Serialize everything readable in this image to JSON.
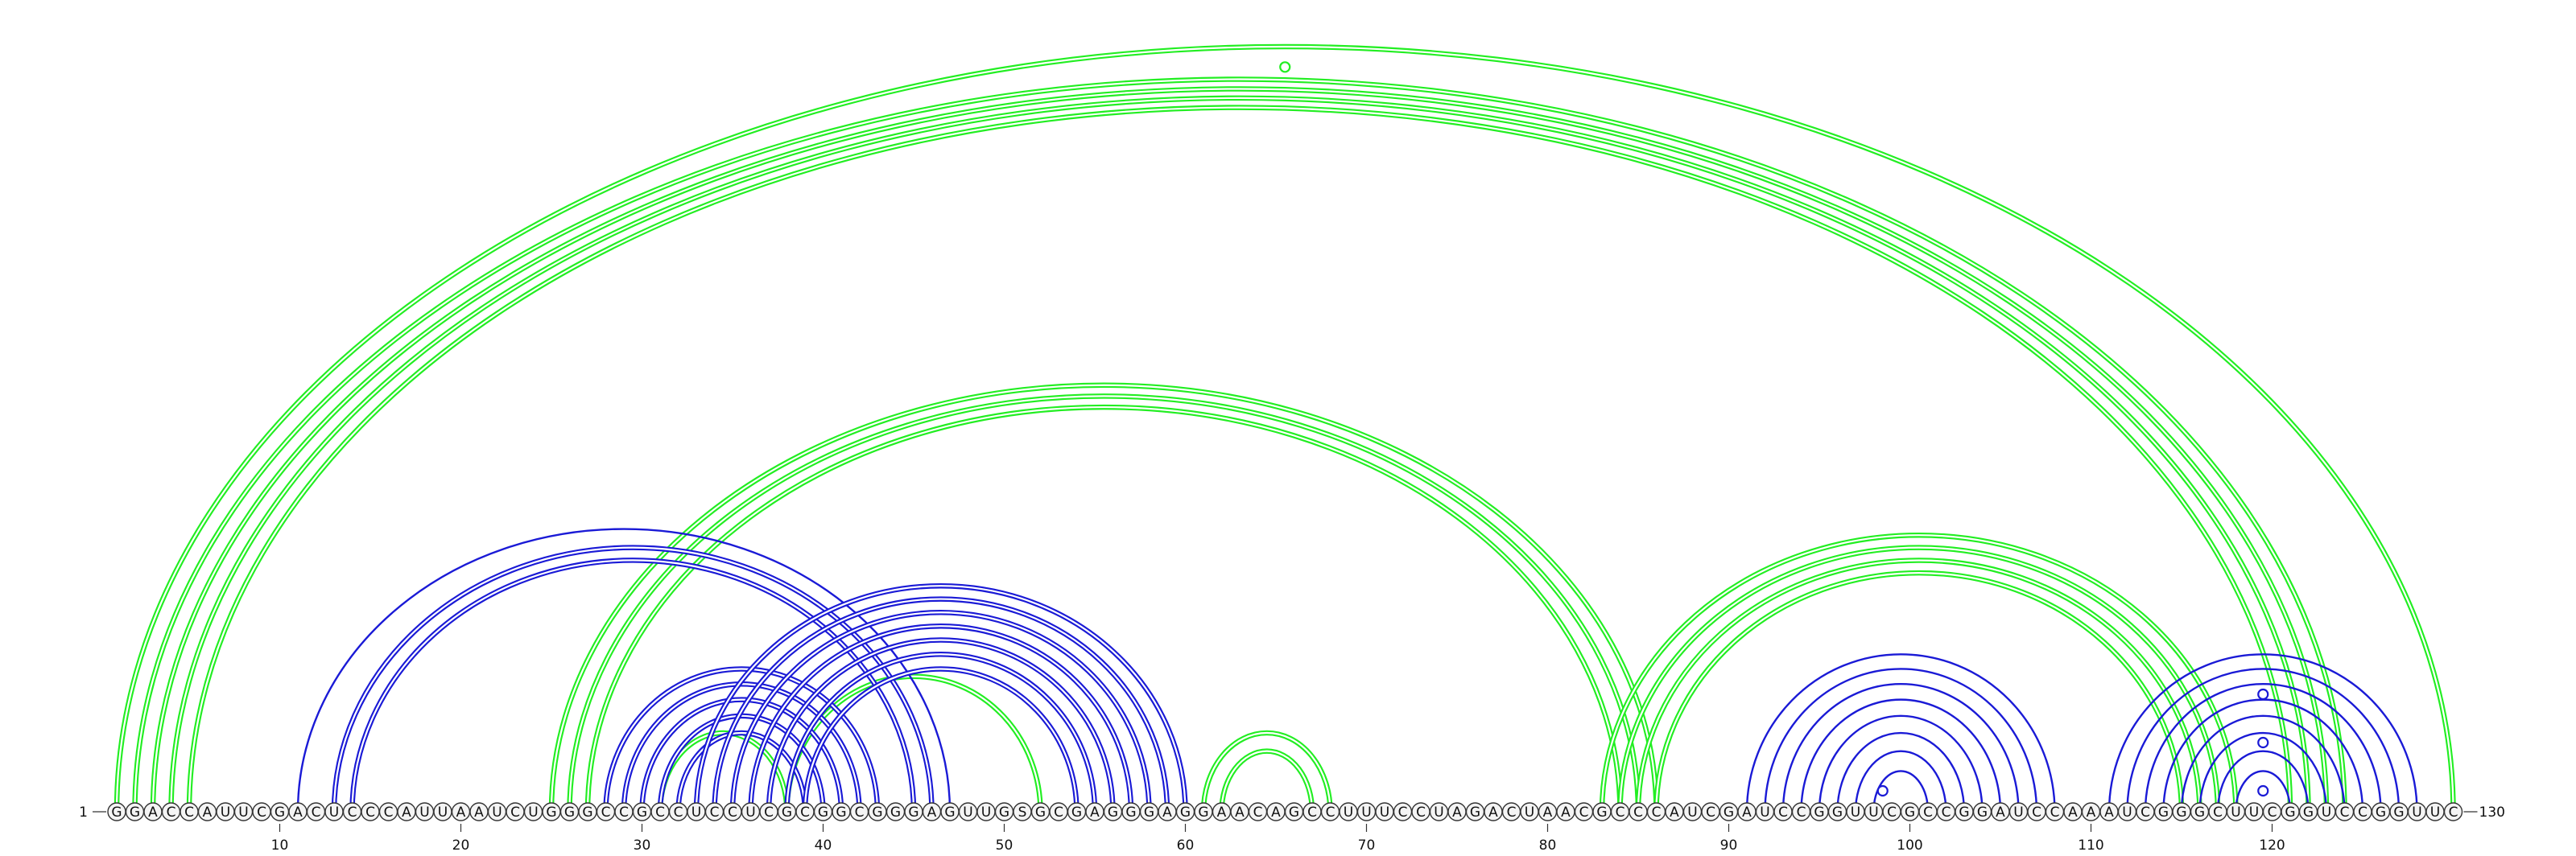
{
  "sequence": "GGACCAUUCGACUCCCAUUAAUCUGGGCCGCCUCCUCGCGGCGGGAGUUGSGCGAGGGAGGAACAGCCUUUCCUAGACUAACGCCCAUCGAUCCGGUUCGCCGGAUCCAAAUCGGGCUUCGGUCCGGUUC",
  "start_label": "1",
  "end_label": "130",
  "ticks": [
    {
      "pos": 10,
      "label": "10"
    },
    {
      "pos": 20,
      "label": "20"
    },
    {
      "pos": 30,
      "label": "30"
    },
    {
      "pos": 40,
      "label": "40"
    },
    {
      "pos": 50,
      "label": "50"
    },
    {
      "pos": 60,
      "label": "60"
    },
    {
      "pos": 70,
      "label": "70"
    },
    {
      "pos": 80,
      "label": "80"
    },
    {
      "pos": 90,
      "label": "90"
    },
    {
      "pos": 100,
      "label": "100"
    },
    {
      "pos": 110,
      "label": "110"
    },
    {
      "pos": 120,
      "label": "120"
    },
    {
      "pos": 130,
      "label": "130"
    }
  ],
  "colors": {
    "green": "#22ee22",
    "blue": "#1a1ad6"
  },
  "markers": [
    {
      "pos": 65.5,
      "level": "top",
      "color": "green"
    },
    {
      "pos": 119.5,
      "level": 1,
      "color": "blue"
    },
    {
      "pos": 119.5,
      "level": 3,
      "color": "blue"
    },
    {
      "pos": 119.5,
      "level": 5,
      "color": "blue"
    },
    {
      "pos": 98.5,
      "level": 1,
      "color": "blue"
    }
  ],
  "arcs": [
    {
      "i": 1,
      "j": 130,
      "color": "green",
      "double": true
    },
    {
      "i": 2,
      "j": 124,
      "color": "green",
      "double": true
    },
    {
      "i": 3,
      "j": 123,
      "color": "green",
      "double": true
    },
    {
      "i": 4,
      "j": 122,
      "color": "green",
      "double": true
    },
    {
      "i": 5,
      "j": 121,
      "color": "green",
      "double": true
    },
    {
      "i": 25,
      "j": 86,
      "color": "green",
      "double": true
    },
    {
      "i": 26,
      "j": 85,
      "color": "green",
      "double": true
    },
    {
      "i": 27,
      "j": 84,
      "color": "green",
      "double": true
    },
    {
      "i": 83,
      "j": 118,
      "color": "green",
      "double": true
    },
    {
      "i": 84,
      "j": 117,
      "color": "green",
      "double": true
    },
    {
      "i": 85,
      "j": 116,
      "color": "green",
      "double": true
    },
    {
      "i": 86,
      "j": 115,
      "color": "green",
      "double": true
    },
    {
      "i": 61,
      "j": 68,
      "color": "green",
      "double": true
    },
    {
      "i": 62,
      "j": 67,
      "color": "green",
      "double": true
    },
    {
      "i": 38,
      "j": 52,
      "color": "green",
      "double": true
    },
    {
      "i": 31,
      "j": 38,
      "color": "green",
      "double": true
    },
    {
      "i": 11,
      "j": 47,
      "color": "blue",
      "double": false
    },
    {
      "i": 13,
      "j": 46,
      "color": "blue",
      "double": true
    },
    {
      "i": 14,
      "j": 45,
      "color": "blue",
      "double": true
    },
    {
      "i": 28,
      "j": 43,
      "color": "blue",
      "double": true
    },
    {
      "i": 29,
      "j": 42,
      "color": "blue",
      "double": true
    },
    {
      "i": 30,
      "j": 41,
      "color": "blue",
      "double": true
    },
    {
      "i": 31,
      "j": 40,
      "color": "blue",
      "double": true
    },
    {
      "i": 32,
      "j": 39,
      "color": "blue",
      "double": true
    },
    {
      "i": 33,
      "j": 60,
      "color": "blue",
      "double": true
    },
    {
      "i": 34,
      "j": 59,
      "color": "blue",
      "double": true
    },
    {
      "i": 35,
      "j": 58,
      "color": "blue",
      "double": true
    },
    {
      "i": 36,
      "j": 57,
      "color": "blue",
      "double": true
    },
    {
      "i": 37,
      "j": 56,
      "color": "blue",
      "double": true
    },
    {
      "i": 38,
      "j": 55,
      "color": "blue",
      "double": true
    },
    {
      "i": 39,
      "j": 54,
      "color": "blue",
      "double": true
    },
    {
      "i": 91,
      "j": 108,
      "color": "blue",
      "double": false
    },
    {
      "i": 92,
      "j": 107,
      "color": "blue",
      "double": false
    },
    {
      "i": 93,
      "j": 106,
      "color": "blue",
      "double": false
    },
    {
      "i": 94,
      "j": 105,
      "color": "blue",
      "double": false
    },
    {
      "i": 95,
      "j": 104,
      "color": "blue",
      "double": false
    },
    {
      "i": 96,
      "j": 103,
      "color": "blue",
      "double": false
    },
    {
      "i": 97,
      "j": 102,
      "color": "blue",
      "double": false
    },
    {
      "i": 98,
      "j": 101,
      "color": "blue",
      "double": false
    },
    {
      "i": 111,
      "j": 128,
      "color": "blue",
      "double": false
    },
    {
      "i": 112,
      "j": 127,
      "color": "blue",
      "double": false
    },
    {
      "i": 113,
      "j": 126,
      "color": "blue",
      "double": false
    },
    {
      "i": 114,
      "j": 125,
      "color": "blue",
      "double": false
    },
    {
      "i": 115,
      "j": 124,
      "color": "blue",
      "double": false
    },
    {
      "i": 116,
      "j": 123,
      "color": "blue",
      "double": false
    },
    {
      "i": 117,
      "j": 122,
      "color": "blue",
      "double": false
    },
    {
      "i": 118,
      "j": 121,
      "color": "blue",
      "double": false
    }
  ]
}
